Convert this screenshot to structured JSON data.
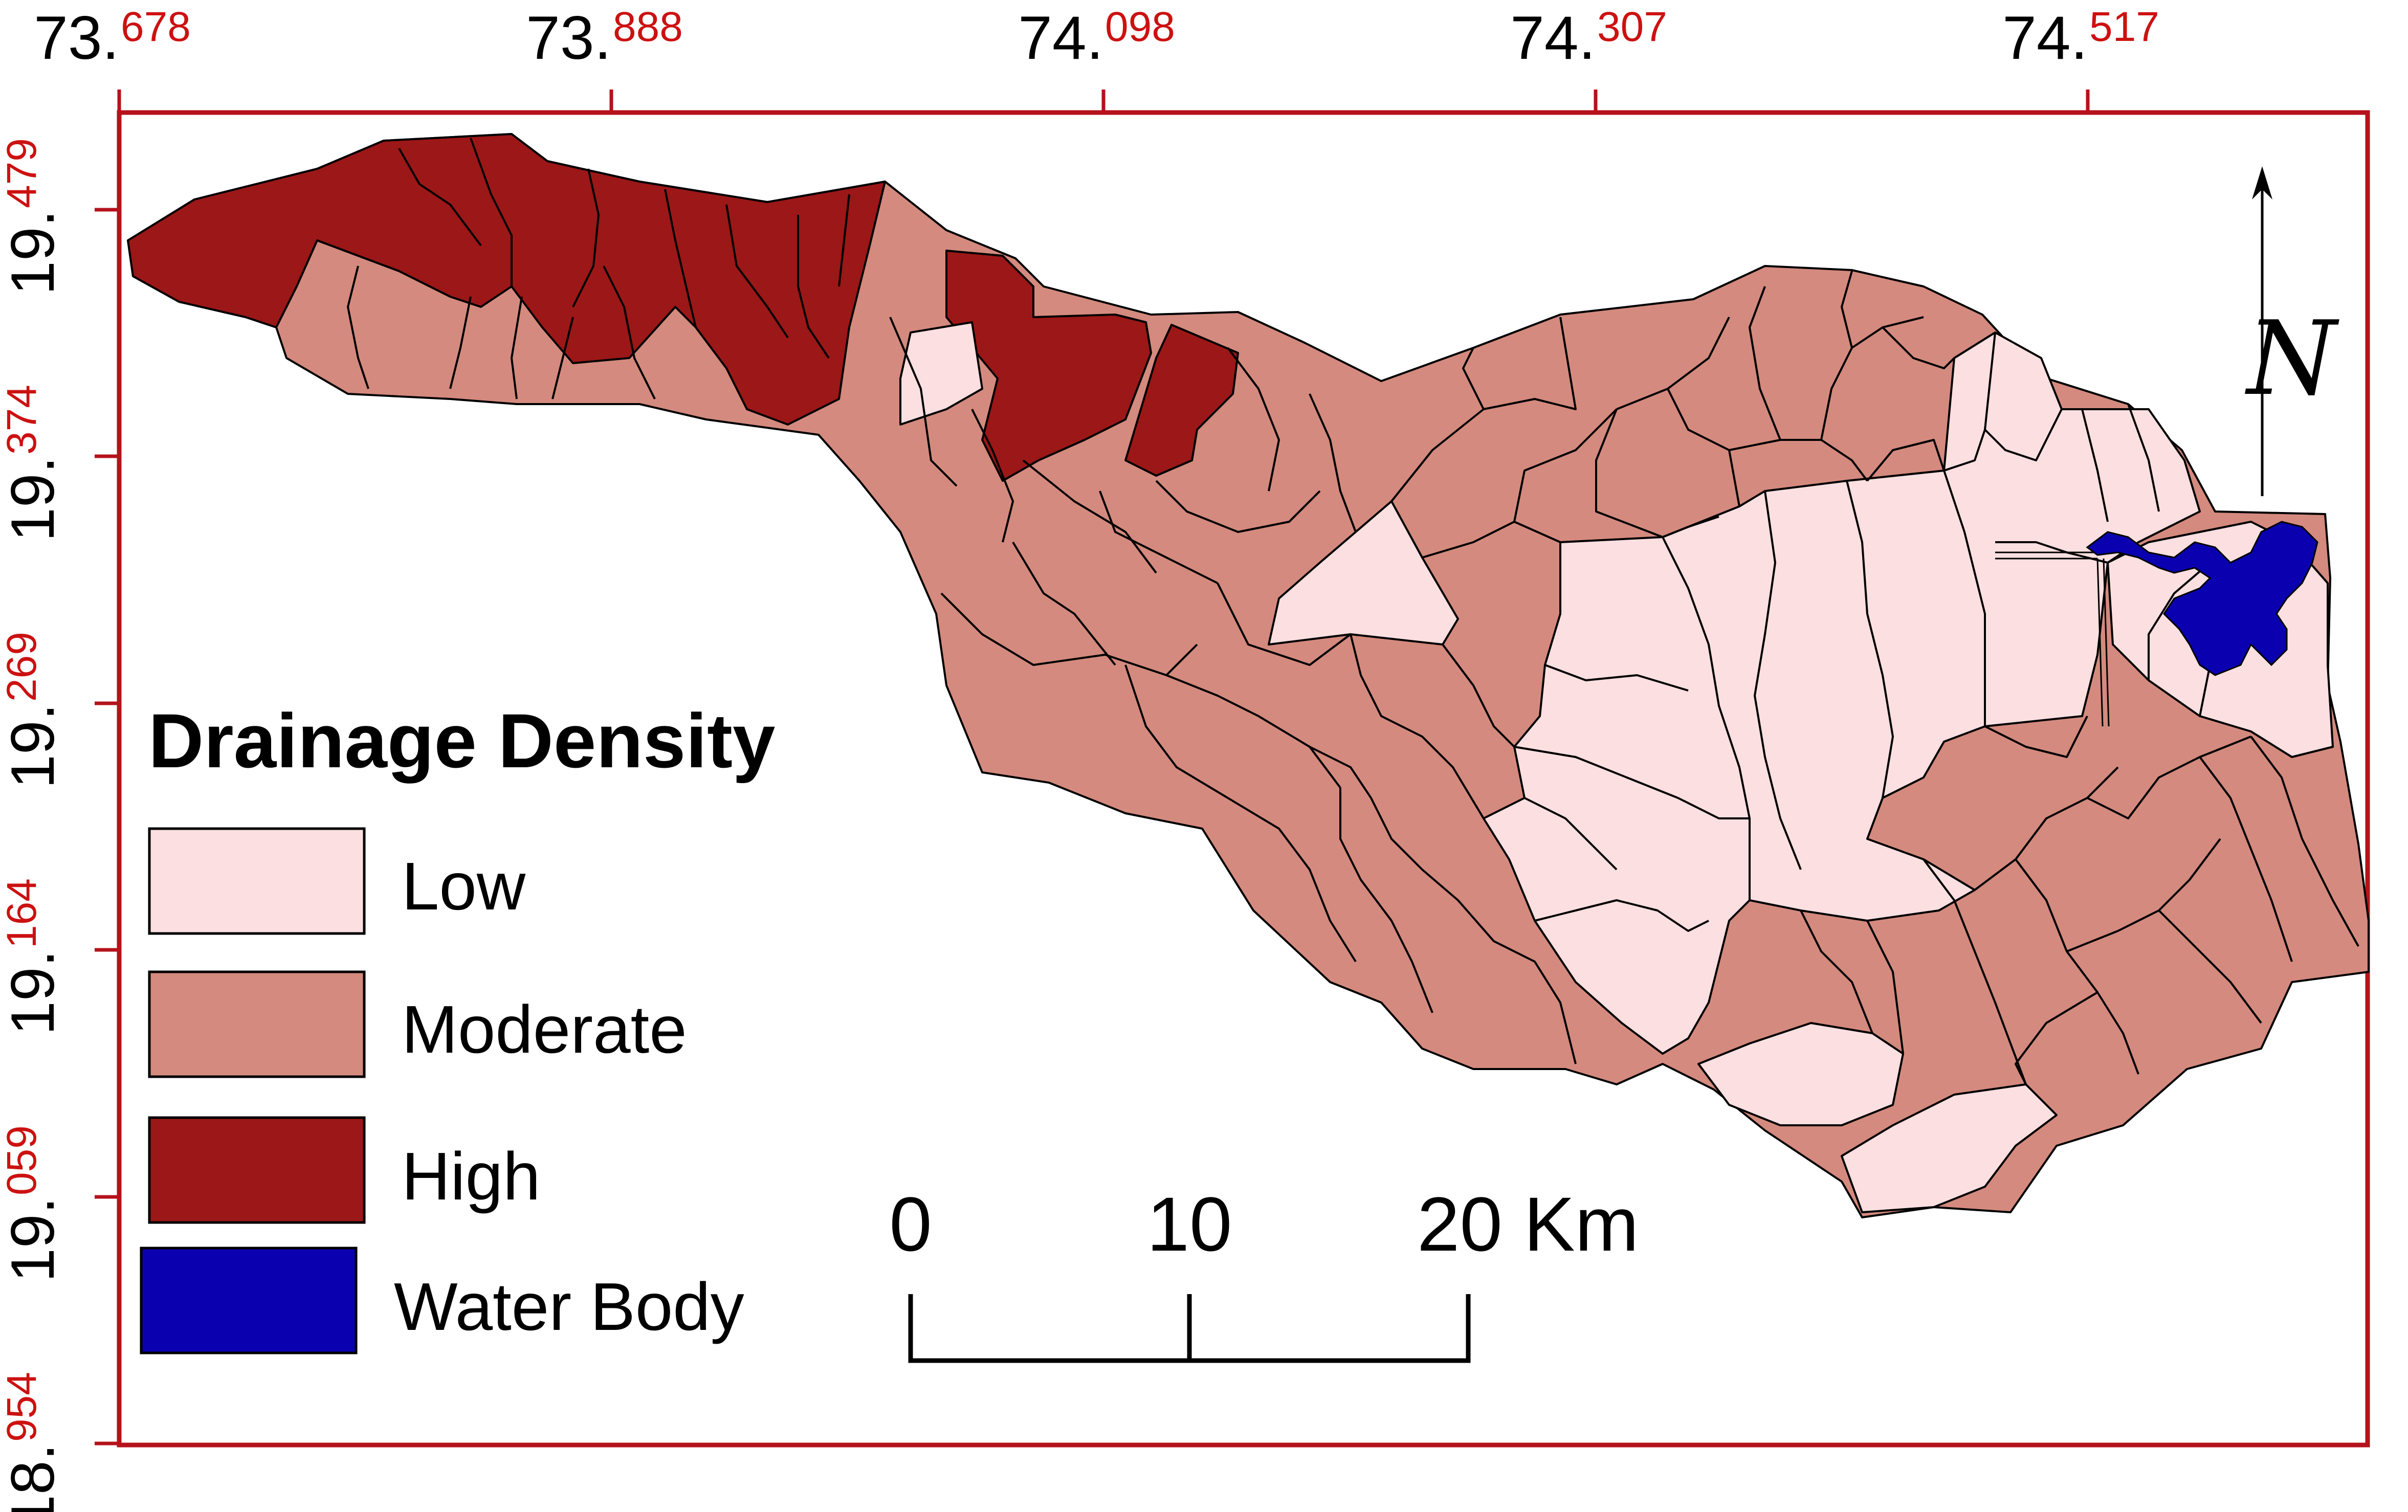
{
  "legend": {
    "title": "Drainage Density",
    "items": [
      {
        "key": "low",
        "label": "Low",
        "color": "#fcdfe0"
      },
      {
        "key": "moderate",
        "label": "Moderate",
        "color": "#d48a7e"
      },
      {
        "key": "high",
        "label": "High",
        "color": "#9c1717"
      },
      {
        "key": "water",
        "label": "Water Body",
        "color": "#0a00b0"
      }
    ]
  },
  "longitude_ticks": [
    {
      "int": "73.",
      "frac": "678"
    },
    {
      "int": "73.",
      "frac": "888"
    },
    {
      "int": "74.",
      "frac": "098"
    },
    {
      "int": "74.",
      "frac": "307"
    },
    {
      "int": "74.",
      "frac": "517"
    }
  ],
  "latitude_ticks": [
    {
      "int": "19.",
      "frac": "479"
    },
    {
      "int": "19.",
      "frac": "374"
    },
    {
      "int": "19.",
      "frac": "269"
    },
    {
      "int": "19.",
      "frac": "164"
    },
    {
      "int": "19.",
      "frac": "059"
    },
    {
      "int": "18.",
      "frac": "954"
    }
  ],
  "scale_bar": {
    "labels": [
      "0",
      "10",
      "20 Km"
    ]
  },
  "north_arrow": {
    "letter": "N"
  },
  "colors": {
    "frame": "#b5121b",
    "tick_fraction": "#cc1111",
    "boundary": "#000000"
  }
}
